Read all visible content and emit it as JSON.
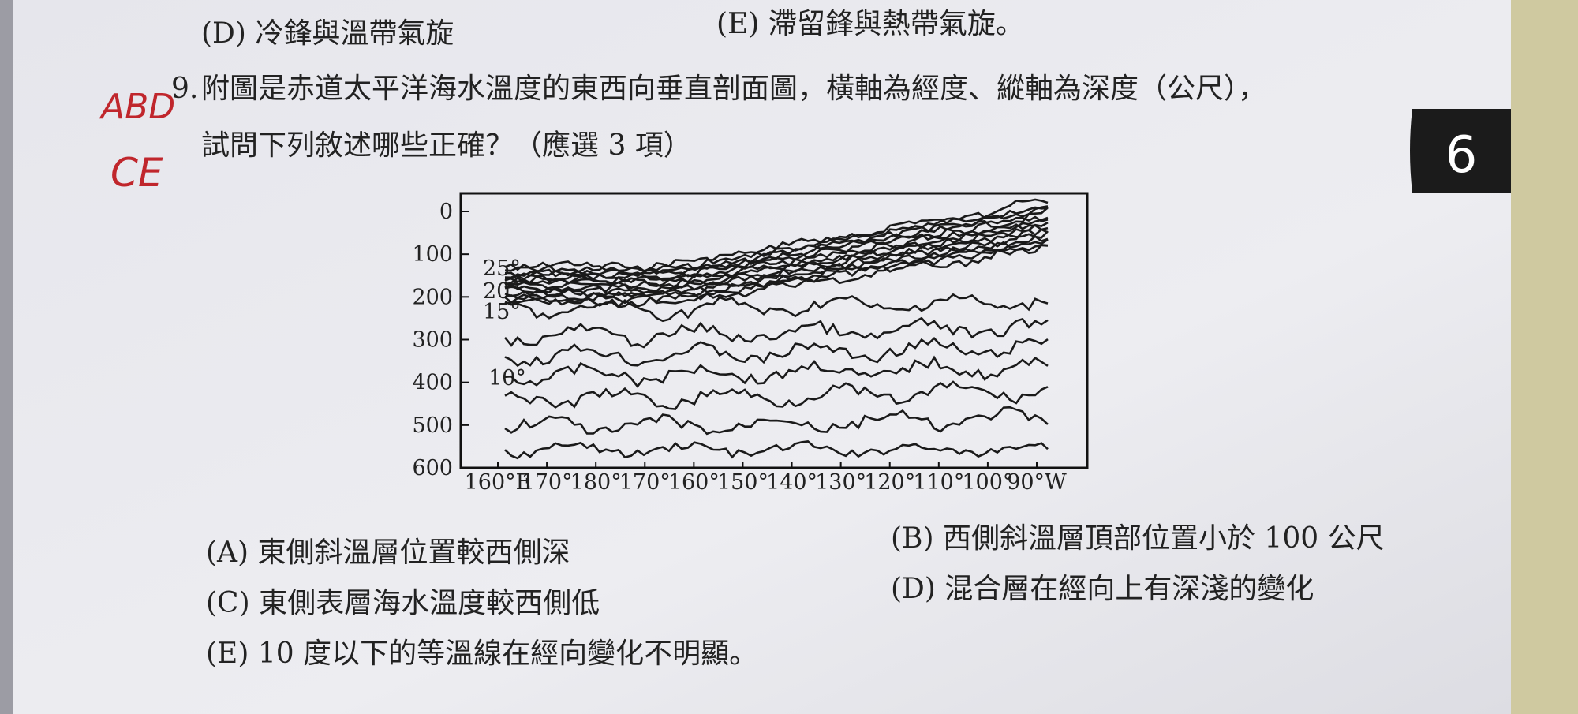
{
  "previous_options": [
    "(D) 冷鋒與溫帶氣旋",
    "(E) 滯留鋒與熱帶氣旋。"
  ],
  "handwriting": [
    "ABD",
    "CE"
  ],
  "question": {
    "number": "9.",
    "lines": [
      "附圖是赤道太平洋海水溫度的東西向垂直剖面圖，橫軸為經度、縱軸為深度（公尺），",
      "試問下列敘述哪些正確？（應選 3 項）"
    ]
  },
  "figure": {
    "y_labels": [
      "0",
      "100",
      "200",
      "300",
      "400",
      "500",
      "600"
    ],
    "x_labels": [
      "160°E",
      "170°",
      "180°",
      "170°",
      "160°",
      "150°",
      "140°",
      "130°",
      "120°",
      "110°",
      "100°",
      "90°W"
    ],
    "isotherm_labels": [
      "25°",
      "20°",
      "15°",
      "10°"
    ]
  },
  "options": [
    "(A) 東側斜溫層位置較西側深",
    "(B) 西側斜溫層頂部位置小於 100 公尺",
    "(C) 東側表層海水溫度較西側低",
    "(D) 混合層在經向上有深淺的變化",
    "(E) 10 度以下的等溫線在經向變化不明顯。"
  ],
  "page_tab": "6"
}
